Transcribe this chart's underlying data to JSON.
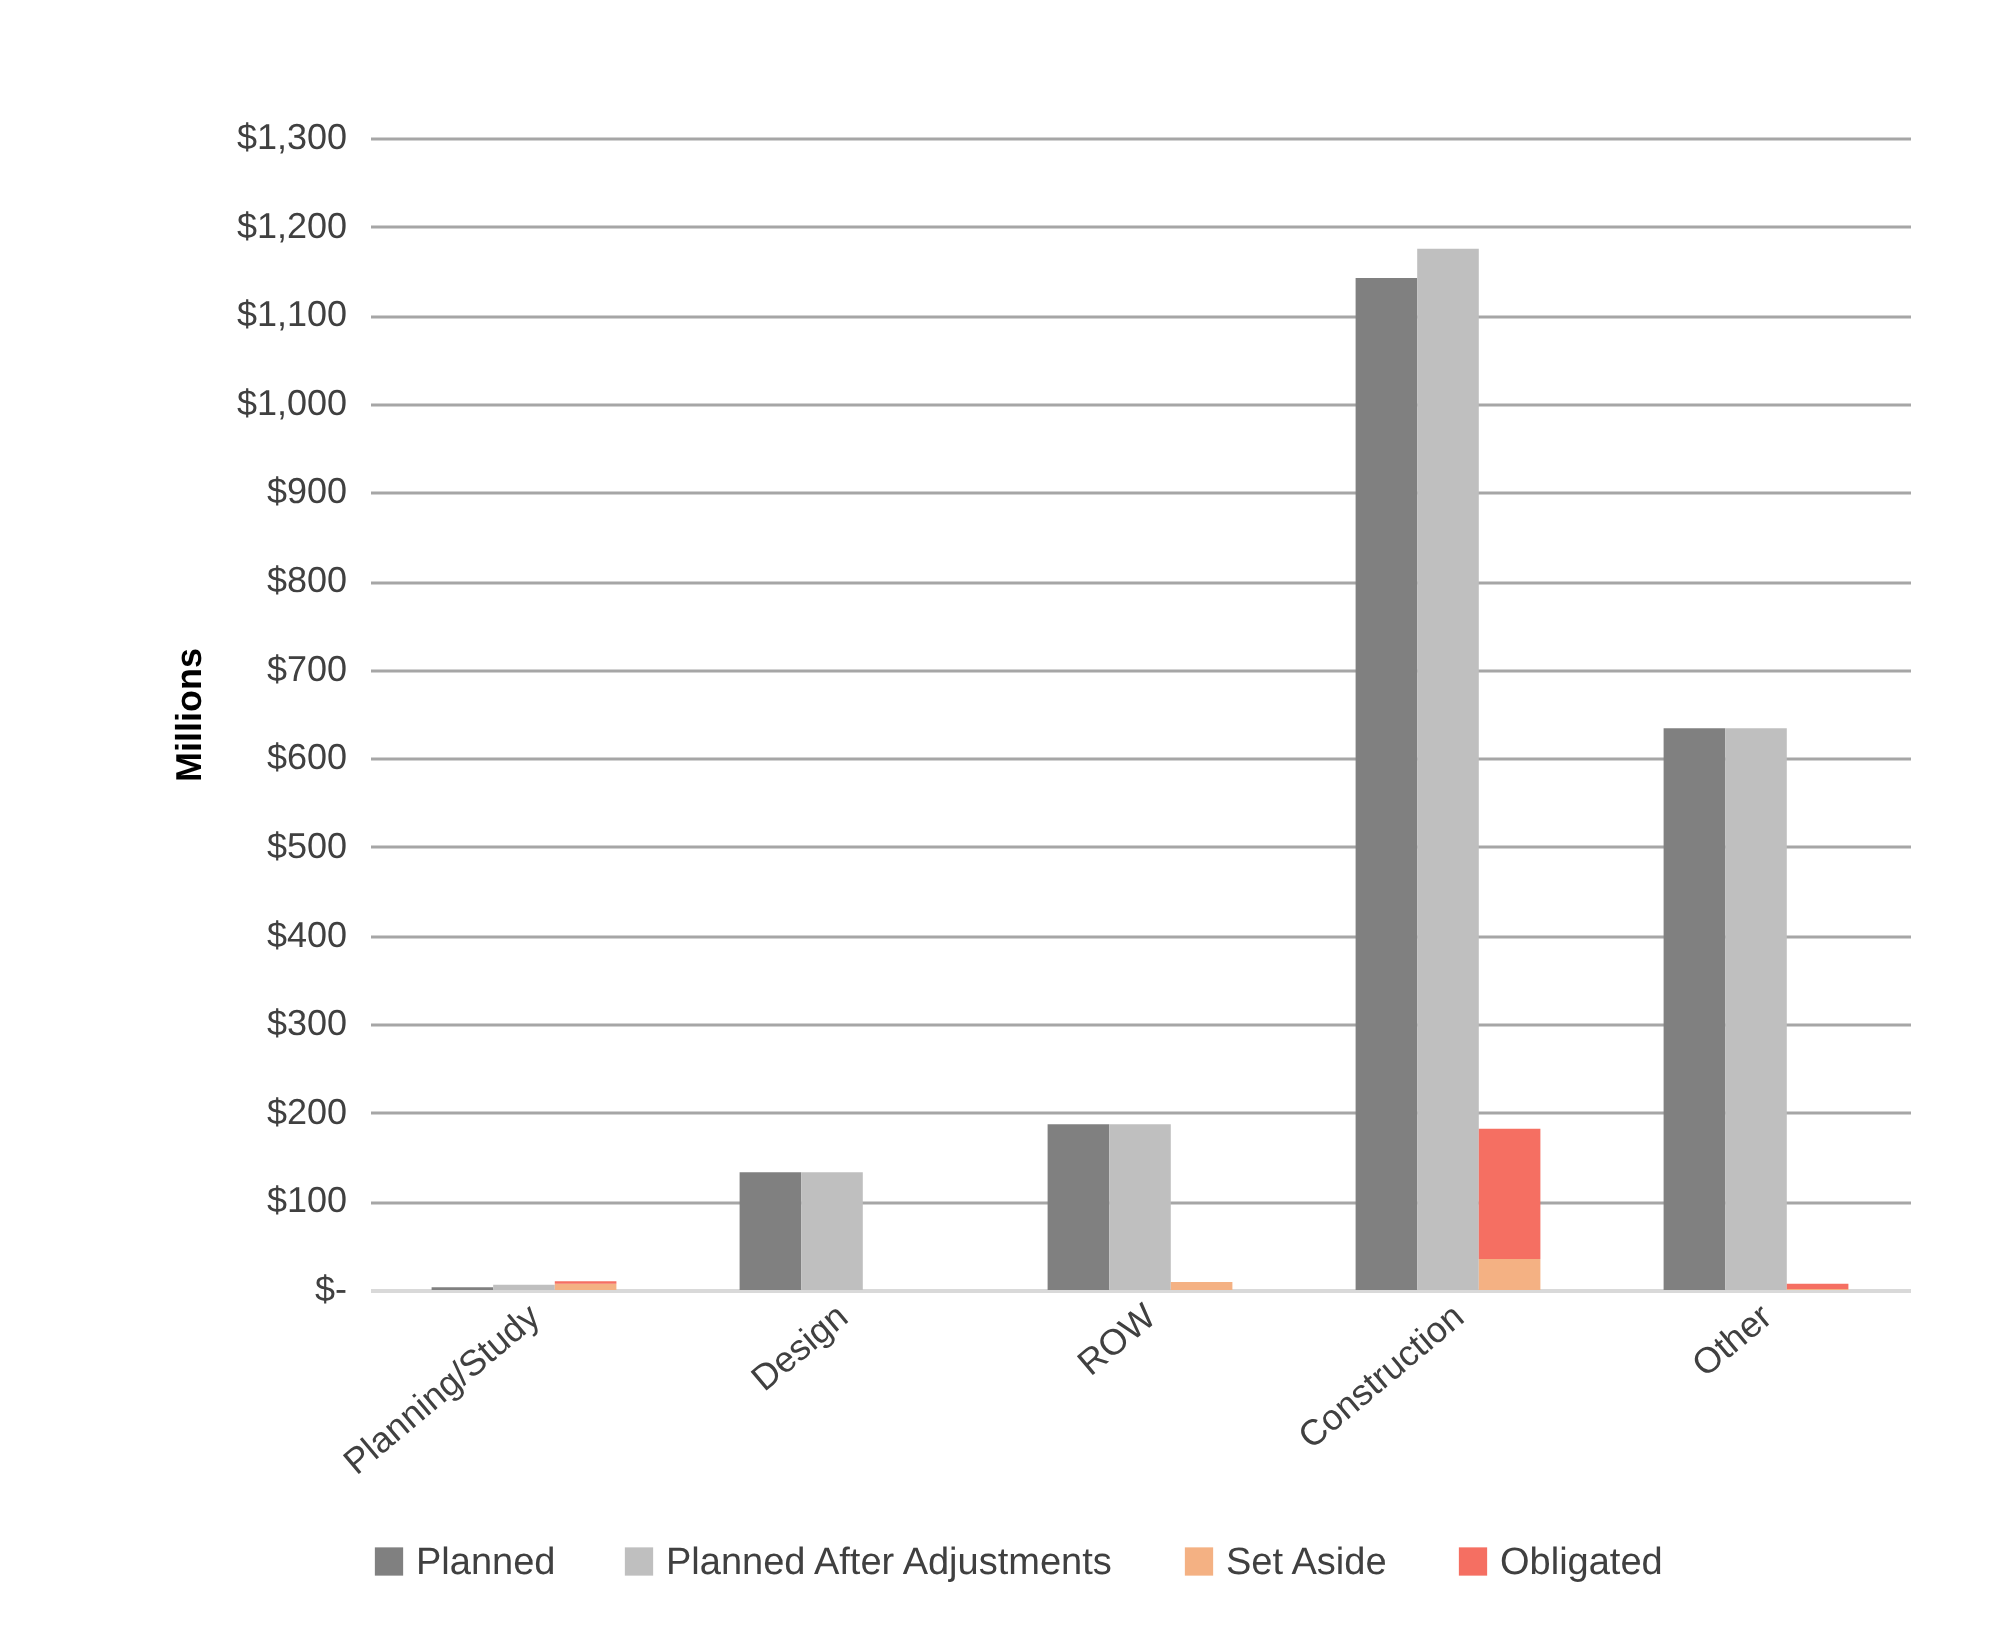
{
  "chart_data": {
    "type": "bar",
    "ylabel": "Millions",
    "categories": [
      "Planning/Study",
      "Design",
      "ROW",
      "Construction",
      "Other"
    ],
    "series": [
      {
        "name": "Planned",
        "color": "#808080",
        "values": [
          3,
          133,
          187,
          1142,
          634
        ]
      },
      {
        "name": "Planned After Adjustments",
        "color": "#bfbfbf",
        "values": [
          6,
          133,
          187,
          1175,
          634
        ]
      },
      {
        "name": "Set Aside",
        "color": "#f4b183",
        "values": [
          7,
          0,
          9,
          35,
          1
        ]
      },
      {
        "name": "Obligated",
        "color": "#f56f62",
        "values": [
          3,
          null,
          null,
          147,
          6
        ],
        "base": [
          7,
          null,
          null,
          35,
          1
        ]
      }
    ],
    "ylim": [
      0,
      1300
    ],
    "yticks": [
      {
        "value": 0,
        "label": "$-"
      },
      {
        "value": 100,
        "label": "$100"
      },
      {
        "value": 200,
        "label": "$200"
      },
      {
        "value": 300,
        "label": "$300"
      },
      {
        "value": 400,
        "label": "$400"
      },
      {
        "value": 500,
        "label": "$500"
      },
      {
        "value": 600,
        "label": "$600"
      },
      {
        "value": 700,
        "label": "$700"
      },
      {
        "value": 800,
        "label": "$800"
      },
      {
        "value": 900,
        "label": "$900"
      },
      {
        "value": 1000,
        "label": "$1,000"
      },
      {
        "value": 1100,
        "label": "$1,100"
      },
      {
        "value": 1200,
        "label": "$1,200"
      },
      {
        "value": 1300,
        "label": "$1,300"
      }
    ],
    "grid": "y",
    "legend": "bottom"
  }
}
